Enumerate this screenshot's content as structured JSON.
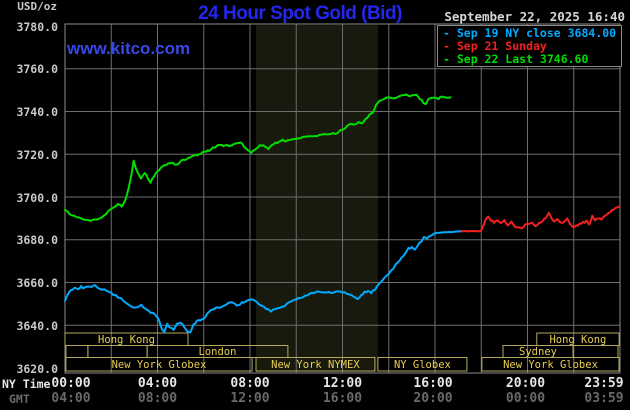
{
  "header": {
    "units_label": "USD/oz",
    "title": "24 Hour Spot Gold (Bid)",
    "datetime": "September 22, 2025 16:40",
    "watermark": "www.kitco.com",
    "legend": [
      {
        "label": "Sep 19 NY close 3684.00",
        "color": "#00aaff"
      },
      {
        "label": "Sep 21 Sunday",
        "color": "#f42020"
      },
      {
        "label": "Sep 22 Last 3746.60",
        "color": "#00dd00"
      }
    ]
  },
  "axes": {
    "x_primary_name": "NY Time",
    "x_secondary_name": "GMT",
    "y_ticks": [
      "3780.0",
      "3760.0",
      "3740.0",
      "3720.0",
      "3700.0",
      "3680.0",
      "3660.0",
      "3640.0",
      "3620.0"
    ],
    "ny_ticks": [
      "00:00",
      "04:00",
      "08:00",
      "12:00",
      "16:00",
      "20:00",
      "23:59"
    ],
    "gmt_ticks": [
      "04:00",
      "08:00",
      "12:00",
      "16:00",
      "20:00",
      "00:00",
      "03:59"
    ]
  },
  "sessions": {
    "border_color": "#b5a95e",
    "text_color": "#e8ce52",
    "rows": [
      [
        {
          "label": "Hong Kong",
          "start": 0.0,
          "end": 5.32
        },
        {
          "label": "Hong Kong",
          "start": 20.4,
          "end": 23.96
        }
      ],
      [
        {
          "label": "",
          "start": 0.04,
          "end": 0.99
        },
        {
          "label": "",
          "start": 0.99,
          "end": 3.55
        },
        {
          "label": "London",
          "start": 3.55,
          "end": 9.64
        },
        {
          "label": "Sydney",
          "start": 18.94,
          "end": 21.97
        },
        {
          "label": "",
          "start": 21.97,
          "end": 23.91
        }
      ],
      [
        {
          "label": "New York Globex",
          "start": 0.04,
          "end": 8.09
        },
        {
          "label": "New York NYMEX",
          "start": 8.26,
          "end": 13.4
        },
        {
          "label": "NY Globex",
          "start": 13.53,
          "end": 17.38
        },
        {
          "label": "New York Globex",
          "start": 18.03,
          "end": 23.96
        }
      ]
    ]
  },
  "chart_data": {
    "type": "line",
    "title": "24 Hour Spot Gold (Bid)",
    "xlabel": "NY Time",
    "ylabel": "USD/oz",
    "x_range_hours": [
      0,
      24
    ],
    "x_gridline_interval_hours": 2,
    "x_tick_interval_hours": 4,
    "ylim": [
      3620,
      3780
    ],
    "y_tick_interval": 20,
    "grid": true,
    "legend_position": "top-right",
    "shaded_region_hours": [
      8.26,
      13.53
    ],
    "shade_color": "#171a0c",
    "series": [
      {
        "name": "Sep 19 NY close",
        "close_value": 3684.0,
        "color": "#00aaff",
        "points": [
          [
            0.0,
            3651.5
          ],
          [
            0.1,
            3654
          ],
          [
            0.25,
            3656.5
          ],
          [
            0.4,
            3657.5
          ],
          [
            0.55,
            3657.2
          ],
          [
            0.7,
            3658
          ],
          [
            0.85,
            3657.4
          ],
          [
            1.0,
            3658.2
          ],
          [
            1.15,
            3657.8
          ],
          [
            1.3,
            3658.4
          ],
          [
            1.45,
            3657.6
          ],
          [
            1.6,
            3656.8
          ],
          [
            1.8,
            3656.2
          ],
          [
            2.0,
            3655
          ],
          [
            2.2,
            3653.8
          ],
          [
            2.45,
            3652
          ],
          [
            2.7,
            3650.3
          ],
          [
            2.9,
            3648.8
          ],
          [
            3.1,
            3648
          ],
          [
            3.3,
            3649.3
          ],
          [
            3.5,
            3647.5
          ],
          [
            3.7,
            3646
          ],
          [
            3.9,
            3645.3
          ],
          [
            4.05,
            3642.5
          ],
          [
            4.2,
            3638
          ],
          [
            4.3,
            3636.8
          ],
          [
            4.42,
            3640.5
          ],
          [
            4.55,
            3639
          ],
          [
            4.7,
            3638
          ],
          [
            4.85,
            3640.8
          ],
          [
            5.0,
            3641
          ],
          [
            5.15,
            3639.3
          ],
          [
            5.3,
            3637
          ],
          [
            5.42,
            3636.5
          ],
          [
            5.55,
            3640
          ],
          [
            5.7,
            3641.8
          ],
          [
            5.85,
            3642.5
          ],
          [
            6.0,
            3643.2
          ],
          [
            6.15,
            3645.3
          ],
          [
            6.3,
            3647
          ],
          [
            6.45,
            3647.8
          ],
          [
            6.6,
            3648.3
          ],
          [
            6.75,
            3648
          ],
          [
            6.9,
            3649.5
          ],
          [
            7.05,
            3650.3
          ],
          [
            7.2,
            3650.8
          ],
          [
            7.35,
            3649.8
          ],
          [
            7.5,
            3649.2
          ],
          [
            7.65,
            3650.4
          ],
          [
            7.8,
            3651.2
          ],
          [
            7.95,
            3651.8
          ],
          [
            8.1,
            3652
          ],
          [
            8.3,
            3650.8
          ],
          [
            8.5,
            3649
          ],
          [
            8.7,
            3647.5
          ],
          [
            8.9,
            3646.8
          ],
          [
            9.1,
            3647.6
          ],
          [
            9.3,
            3648.5
          ],
          [
            9.5,
            3649.3
          ],
          [
            9.7,
            3650.6
          ],
          [
            9.9,
            3651.8
          ],
          [
            10.1,
            3652.8
          ],
          [
            10.3,
            3653.4
          ],
          [
            10.5,
            3654.4
          ],
          [
            10.7,
            3655.2
          ],
          [
            10.9,
            3655.8
          ],
          [
            11.1,
            3655.4
          ],
          [
            11.3,
            3655.6
          ],
          [
            11.5,
            3655.1
          ],
          [
            11.7,
            3655.3
          ],
          [
            11.9,
            3655.9
          ],
          [
            12.1,
            3655.2
          ],
          [
            12.3,
            3654.2
          ],
          [
            12.5,
            3653.3
          ],
          [
            12.65,
            3652.6
          ],
          [
            12.8,
            3653.8
          ],
          [
            12.95,
            3655.4
          ],
          [
            13.1,
            3655.9
          ],
          [
            13.25,
            3655.2
          ],
          [
            13.4,
            3656.8
          ],
          [
            13.6,
            3659.5
          ],
          [
            13.8,
            3662
          ],
          [
            14.0,
            3664.4
          ],
          [
            14.2,
            3666.8
          ],
          [
            14.4,
            3669.5
          ],
          [
            14.55,
            3671.3
          ],
          [
            14.7,
            3673.6
          ],
          [
            14.85,
            3675.8
          ],
          [
            15.0,
            3676.6
          ],
          [
            15.12,
            3675.3
          ],
          [
            15.25,
            3677.5
          ],
          [
            15.4,
            3679.3
          ],
          [
            15.52,
            3681.1
          ],
          [
            15.65,
            3680.2
          ],
          [
            15.8,
            3682
          ],
          [
            15.95,
            3682.8
          ],
          [
            16.1,
            3683.2
          ],
          [
            16.3,
            3683.4
          ],
          [
            16.5,
            3683.5
          ],
          [
            16.7,
            3683.6
          ],
          [
            16.9,
            3683.8
          ],
          [
            17.15,
            3684
          ]
        ]
      },
      {
        "name": "Sep 21 Sunday",
        "color": "#f42020",
        "points": [
          [
            17.15,
            3684
          ],
          [
            17.6,
            3684
          ],
          [
            18.0,
            3684
          ],
          [
            18.1,
            3686.5
          ],
          [
            18.2,
            3689.3
          ],
          [
            18.3,
            3690.5
          ],
          [
            18.42,
            3688.9
          ],
          [
            18.55,
            3688.3
          ],
          [
            18.7,
            3688.8
          ],
          [
            18.85,
            3687.6
          ],
          [
            19.0,
            3689.2
          ],
          [
            19.15,
            3686.9
          ],
          [
            19.3,
            3688.2
          ],
          [
            19.45,
            3686.3
          ],
          [
            19.6,
            3685.8
          ],
          [
            19.75,
            3685.5
          ],
          [
            19.9,
            3686.7
          ],
          [
            20.05,
            3687.4
          ],
          [
            20.2,
            3687.8
          ],
          [
            20.35,
            3686.4
          ],
          [
            20.5,
            3688
          ],
          [
            20.65,
            3688.7
          ],
          [
            20.8,
            3690.3
          ],
          [
            20.92,
            3692.6
          ],
          [
            21.05,
            3690
          ],
          [
            21.15,
            3688.9
          ],
          [
            21.3,
            3689.8
          ],
          [
            21.45,
            3687.9
          ],
          [
            21.6,
            3688.6
          ],
          [
            21.72,
            3690.3
          ],
          [
            21.85,
            3687.5
          ],
          [
            22.0,
            3685.8
          ],
          [
            22.1,
            3686.3
          ],
          [
            22.25,
            3687.2
          ],
          [
            22.4,
            3688
          ],
          [
            22.55,
            3688.6
          ],
          [
            22.67,
            3687.4
          ],
          [
            22.8,
            3690.8
          ],
          [
            22.92,
            3689
          ],
          [
            23.05,
            3689.9
          ],
          [
            23.2,
            3689.3
          ],
          [
            23.35,
            3691.2
          ],
          [
            23.5,
            3692.6
          ],
          [
            23.65,
            3693.8
          ],
          [
            23.8,
            3694.9
          ],
          [
            23.98,
            3695.6
          ]
        ]
      },
      {
        "name": "Sep 22 Last",
        "last_value": 3746.6,
        "color": "#00dd00",
        "points": [
          [
            0.0,
            3694
          ],
          [
            0.2,
            3692
          ],
          [
            0.5,
            3690.3
          ],
          [
            0.8,
            3689.4
          ],
          [
            1.1,
            3689.2
          ],
          [
            1.4,
            3689.8
          ],
          [
            1.7,
            3691.5
          ],
          [
            1.95,
            3693.8
          ],
          [
            2.15,
            3695.8
          ],
          [
            2.3,
            3696.4
          ],
          [
            2.45,
            3695.7
          ],
          [
            2.6,
            3698.5
          ],
          [
            2.75,
            3704
          ],
          [
            2.87,
            3710
          ],
          [
            2.97,
            3716.8
          ],
          [
            3.05,
            3714
          ],
          [
            3.15,
            3711.5
          ],
          [
            3.28,
            3708.7
          ],
          [
            3.45,
            3711
          ],
          [
            3.58,
            3709
          ],
          [
            3.7,
            3707
          ],
          [
            3.85,
            3709.5
          ],
          [
            4.0,
            3712.3
          ],
          [
            4.15,
            3713.5
          ],
          [
            4.3,
            3714.6
          ],
          [
            4.45,
            3715.5
          ],
          [
            4.6,
            3716.2
          ],
          [
            4.75,
            3715.3
          ],
          [
            4.9,
            3715.8
          ],
          [
            5.05,
            3717.3
          ],
          [
            5.2,
            3717.6
          ],
          [
            5.35,
            3718.4
          ],
          [
            5.5,
            3719.2
          ],
          [
            5.65,
            3719.5
          ],
          [
            5.8,
            3720.3
          ],
          [
            5.95,
            3721
          ],
          [
            6.1,
            3721.4
          ],
          [
            6.25,
            3722
          ],
          [
            6.4,
            3723
          ],
          [
            6.55,
            3723.8
          ],
          [
            6.7,
            3724.5
          ],
          [
            6.85,
            3723.4
          ],
          [
            7.0,
            3724.6
          ],
          [
            7.15,
            3723.6
          ],
          [
            7.3,
            3724.8
          ],
          [
            7.45,
            3725.2
          ],
          [
            7.6,
            3725.4
          ],
          [
            7.75,
            3723.5
          ],
          [
            7.9,
            3721.6
          ],
          [
            8.05,
            3720.9
          ],
          [
            8.2,
            3722.3
          ],
          [
            8.35,
            3723.6
          ],
          [
            8.5,
            3724.4
          ],
          [
            8.65,
            3723.5
          ],
          [
            8.8,
            3722.5
          ],
          [
            8.95,
            3724
          ],
          [
            9.1,
            3725.2
          ],
          [
            9.25,
            3726
          ],
          [
            9.4,
            3726.5
          ],
          [
            9.55,
            3726
          ],
          [
            9.7,
            3726.6
          ],
          [
            9.85,
            3727
          ],
          [
            10.0,
            3727.3
          ],
          [
            10.2,
            3727.6
          ],
          [
            10.4,
            3728.2
          ],
          [
            10.6,
            3728.4
          ],
          [
            10.8,
            3728.1
          ],
          [
            11.0,
            3729
          ],
          [
            11.2,
            3729.4
          ],
          [
            11.4,
            3729.3
          ],
          [
            11.6,
            3729.6
          ],
          [
            11.8,
            3730.2
          ],
          [
            12.0,
            3731.5
          ],
          [
            12.2,
            3733
          ],
          [
            12.4,
            3734.5
          ],
          [
            12.55,
            3734
          ],
          [
            12.7,
            3735.2
          ],
          [
            12.85,
            3734.6
          ],
          [
            13.0,
            3736.5
          ],
          [
            13.15,
            3738
          ],
          [
            13.3,
            3739.8
          ],
          [
            13.45,
            3742.8
          ],
          [
            13.6,
            3744.8
          ],
          [
            13.8,
            3746
          ],
          [
            14.0,
            3746.8
          ],
          [
            14.2,
            3746.3
          ],
          [
            14.4,
            3747
          ],
          [
            14.6,
            3747.6
          ],
          [
            14.75,
            3747.9
          ],
          [
            14.9,
            3746.8
          ],
          [
            15.05,
            3747.7
          ],
          [
            15.2,
            3747.9
          ],
          [
            15.35,
            3746
          ],
          [
            15.5,
            3744.3
          ],
          [
            15.6,
            3743.5
          ],
          [
            15.72,
            3745.9
          ],
          [
            15.85,
            3746.3
          ],
          [
            16.0,
            3746.5
          ],
          [
            16.15,
            3746.2
          ],
          [
            16.3,
            3746.9
          ],
          [
            16.45,
            3746.5
          ],
          [
            16.55,
            3746.3
          ],
          [
            16.67,
            3746.6
          ]
        ]
      }
    ]
  }
}
